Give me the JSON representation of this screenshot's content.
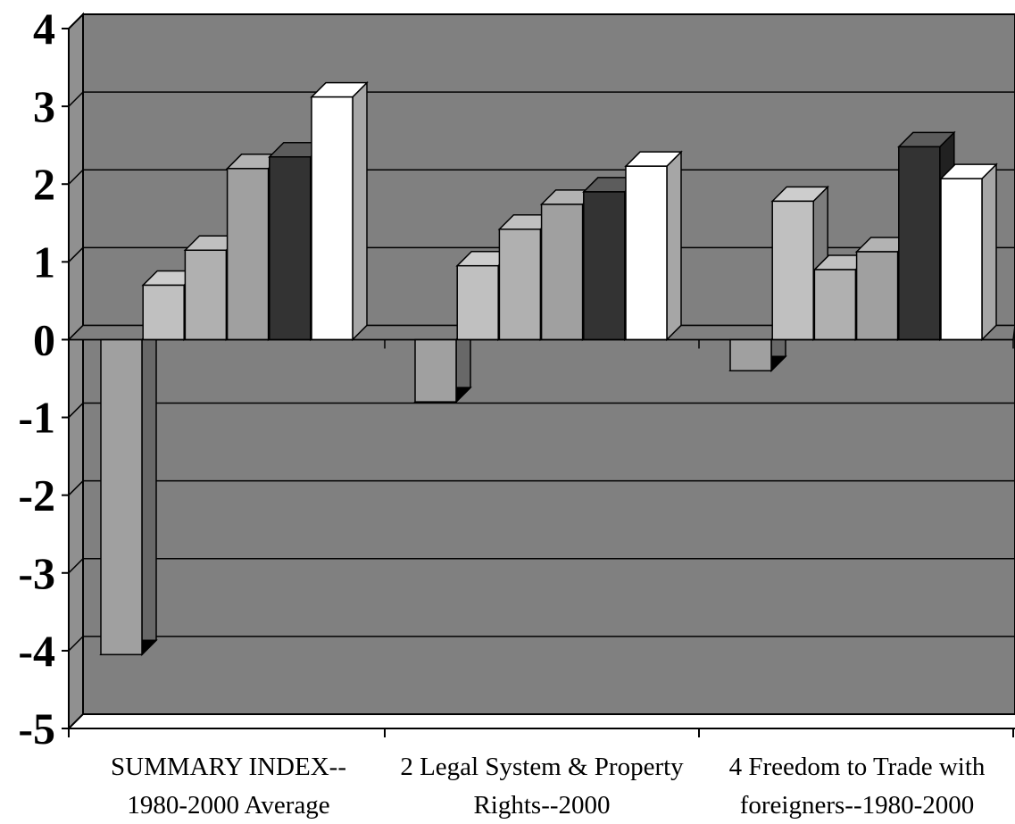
{
  "chart_data": {
    "type": "bar",
    "style": "3d-clustered-column",
    "categories": [
      [
        "SUMMARY INDEX--",
        "1980-2000 Average"
      ],
      [
        "2  Legal System & Property",
        "Rights--2000"
      ],
      [
        "4  Freedom to Trade with",
        "foreigners--1980-2000"
      ]
    ],
    "series": [
      {
        "values": [
          -4.05,
          -0.8,
          -0.4
        ],
        "color": "#a0a0a0"
      },
      {
        "values": [
          0.7,
          0.95,
          1.78
        ],
        "color": "#c0c0c0"
      },
      {
        "values": [
          1.15,
          1.42,
          0.9
        ],
        "color": "#b0b0b0"
      },
      {
        "values": [
          2.2,
          1.74,
          1.13
        ],
        "color": "#a0a0a0"
      },
      {
        "values": [
          2.35,
          1.9,
          2.48
        ],
        "color": "#333333"
      },
      {
        "values": [
          3.12,
          2.23,
          2.07
        ],
        "color": "#ffffff"
      }
    ],
    "ylim": [
      -5,
      4
    ],
    "yticks": [
      "4",
      "3",
      "2",
      "1",
      "0",
      "-1",
      "-2",
      "-3",
      "-4",
      "-5"
    ],
    "grid": true,
    "legend": "none",
    "colors": {
      "plot_wall": "#808080",
      "side_wall": "#909090",
      "floor": "#808080",
      "gridline": "#000000"
    }
  }
}
